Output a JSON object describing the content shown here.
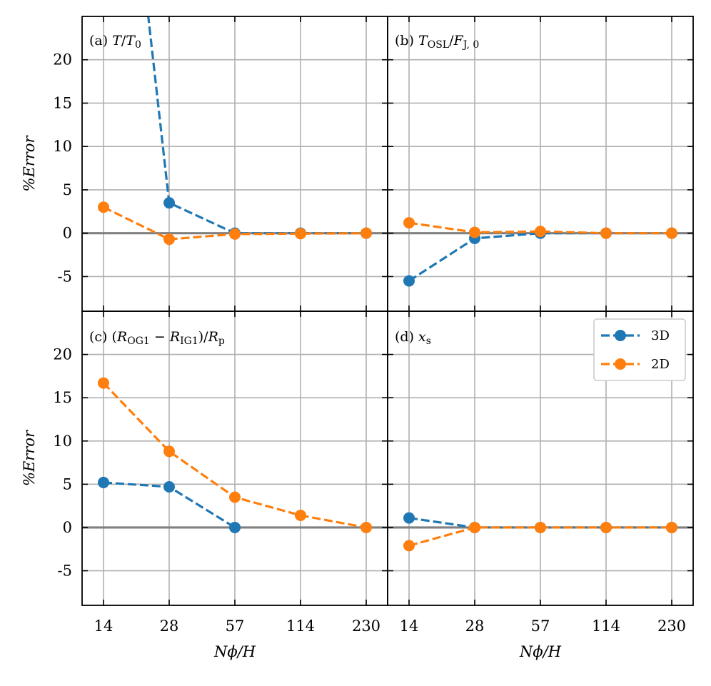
{
  "colors": {
    "s3d": "#1f77b4",
    "s2d": "#ff7f0e",
    "grid": "#b0b0b0",
    "zero": "#808080"
  },
  "axes": {
    "x_ticks": [
      "14",
      "28",
      "57",
      "114",
      "230"
    ],
    "y_ticks": [
      "20",
      "15",
      "10",
      "5",
      "0",
      "-5"
    ],
    "ylabel": "%Error",
    "xlabel": "Nϕ/H",
    "ylim": [
      -9,
      25
    ]
  },
  "legend": {
    "series_3d": "3D",
    "series_2d": "2D",
    "loc": "upper right of panel (d)"
  },
  "chart_data": [
    {
      "type": "line",
      "panel_label": "(a) T/T₀",
      "categories": [
        "14",
        "28",
        "57",
        "114",
        "230"
      ],
      "series": [
        {
          "name": "3D",
          "values": [
            null,
            3.5,
            0.0,
            0.0,
            0.0
          ],
          "offscreen": [
            14,
            60
          ]
        },
        {
          "name": "2D",
          "values": [
            3.0,
            -0.7,
            -0.1,
            -0.05,
            0.0
          ]
        }
      ]
    },
    {
      "type": "line",
      "panel_label": "(b) T_OSL/F_J,0",
      "categories": [
        "14",
        "28",
        "57",
        "114",
        "230"
      ],
      "series": [
        {
          "name": "3D",
          "values": [
            -5.5,
            -0.6,
            0.0,
            0.0,
            0.0
          ]
        },
        {
          "name": "2D",
          "values": [
            1.2,
            0.1,
            0.2,
            0.0,
            0.0
          ]
        }
      ]
    },
    {
      "type": "line",
      "panel_label": "(c) (R_OG1 − R_IG1)/R_p",
      "categories": [
        "14",
        "28",
        "57",
        "114",
        "230"
      ],
      "series": [
        {
          "name": "3D",
          "values": [
            5.2,
            4.7,
            0.0,
            null,
            null
          ]
        },
        {
          "name": "2D",
          "values": [
            16.7,
            8.8,
            3.5,
            1.4,
            0.0
          ]
        }
      ]
    },
    {
      "type": "line",
      "panel_label": "(d) x_s",
      "categories": [
        "14",
        "28",
        "57",
        "114",
        "230"
      ],
      "series": [
        {
          "name": "3D",
          "values": [
            1.1,
            0.0,
            0.0,
            0.0,
            0.0
          ]
        },
        {
          "name": "2D",
          "values": [
            -2.1,
            0.0,
            0.0,
            0.0,
            0.0
          ]
        }
      ]
    }
  ]
}
